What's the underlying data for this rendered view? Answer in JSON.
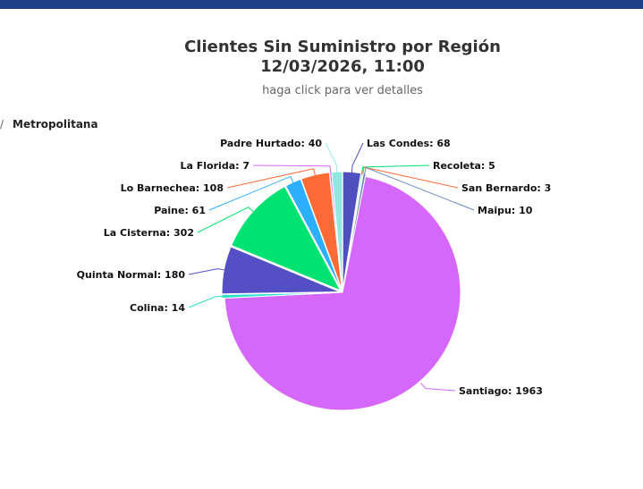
{
  "header": {
    "title_line1": "Clientes Sin Suministro por Región",
    "title_line2": "12/03/2026, 11:00",
    "subtitle": "haga click para ver detalles"
  },
  "breadcrumb": {
    "separator": "/",
    "label": "Metropolitana"
  },
  "chart_data": {
    "type": "pie",
    "title": "Clientes Sin Suministro por Región",
    "subtitle": "12/03/2026, 11:00",
    "slices": [
      {
        "name": "Las Condes",
        "value": 68,
        "color": "#4f4fbf"
      },
      {
        "name": "Recoleta",
        "value": 5,
        "color": "#00e272"
      },
      {
        "name": "San Bernardo",
        "value": 3,
        "color": "#fe6a35"
      },
      {
        "name": "Maipu",
        "value": 10,
        "color": "#6b8abc"
      },
      {
        "name": "Santiago",
        "value": 1963,
        "color": "#d568fb"
      },
      {
        "name": "Colina",
        "value": 14,
        "color": "#2ee0ca"
      },
      {
        "name": "Quinta Normal",
        "value": 180,
        "color": "#544fc5"
      },
      {
        "name": "La Cisterna",
        "value": 302,
        "color": "#00e272"
      },
      {
        "name": "Paine",
        "value": 61,
        "color": "#2caffe"
      },
      {
        "name": "Lo Barnechea",
        "value": 108,
        "color": "#fe6a35"
      },
      {
        "name": "La Florida",
        "value": 7,
        "color": "#d568fb"
      },
      {
        "name": "Padre Hurtado",
        "value": 40,
        "color": "#91e8e1"
      }
    ]
  }
}
